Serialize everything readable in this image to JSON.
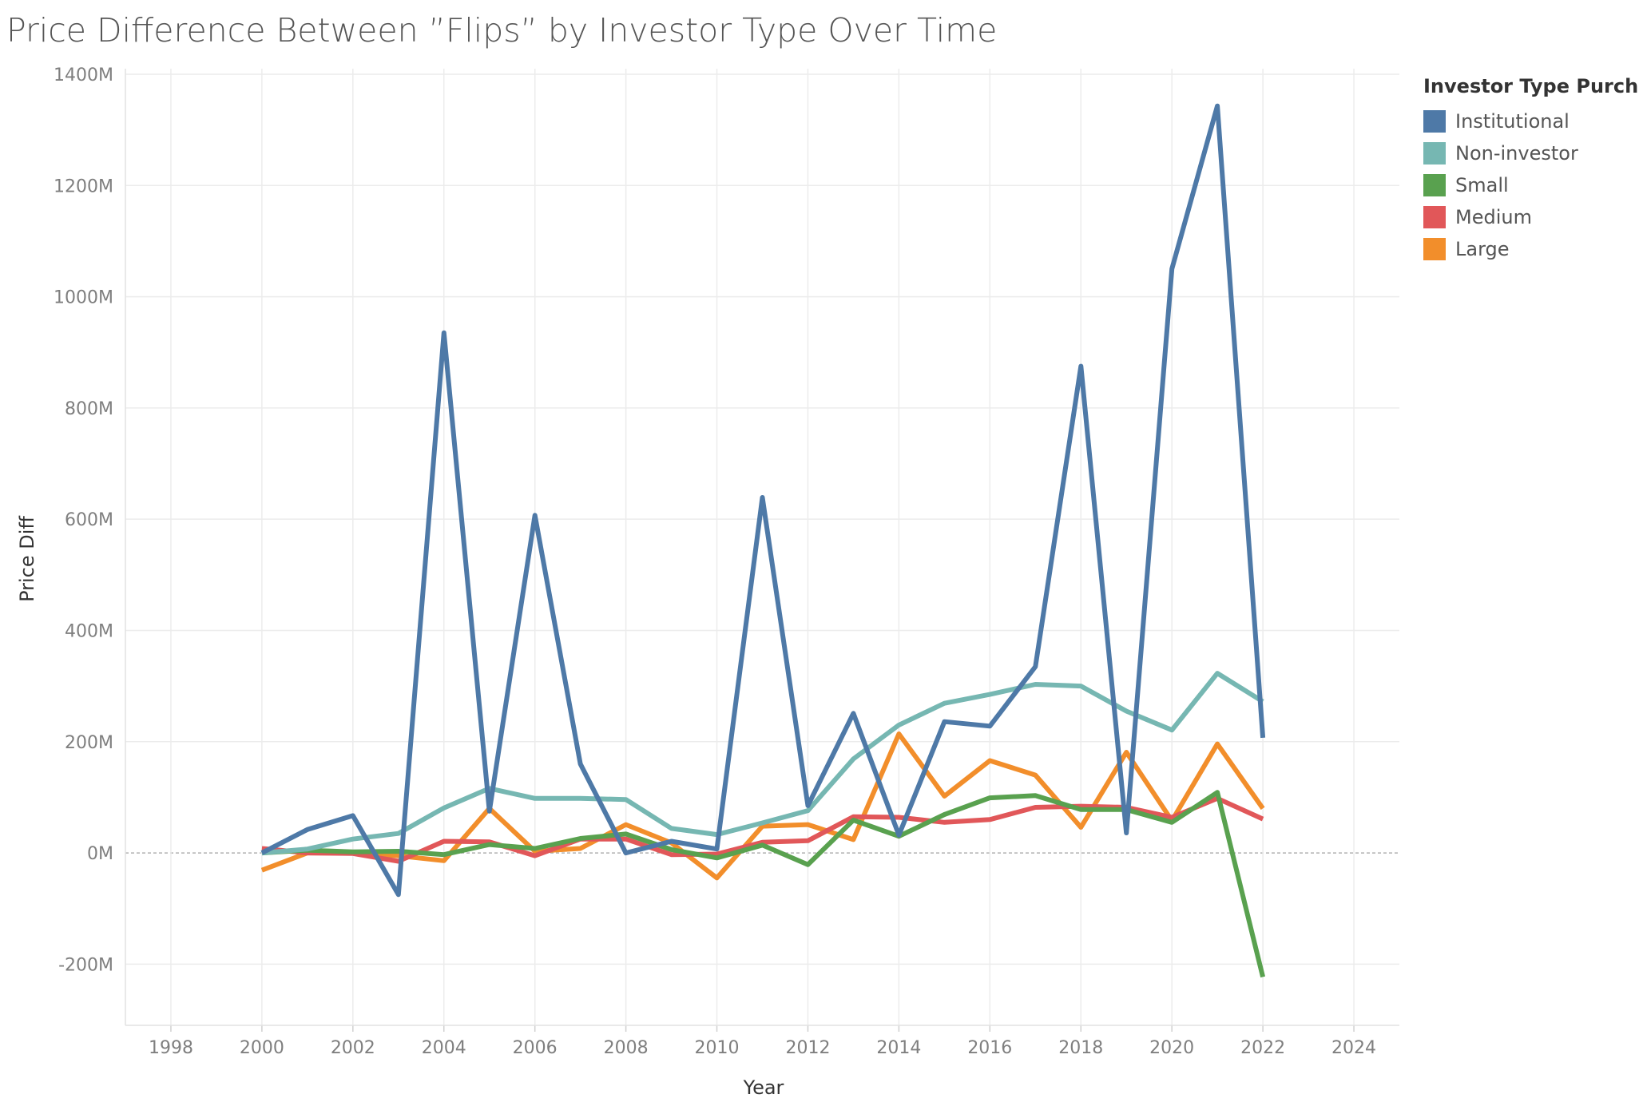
{
  "title": "Price Difference Between ”Flips” by Investor Type  Over Time",
  "legend": {
    "title": "Investor Type Purchase"
  },
  "chart_data": {
    "type": "line",
    "title": "Price Difference Between ”Flips” by Investor Type  Over Time",
    "xlabel": "Year",
    "ylabel": "Price Diff",
    "x": [
      2000,
      2001,
      2002,
      2003,
      2004,
      2005,
      2006,
      2007,
      2008,
      2009,
      2010,
      2011,
      2012,
      2013,
      2014,
      2015,
      2016,
      2017,
      2018,
      2019,
      2020,
      2021,
      2022
    ],
    "xlim": [
      1997,
      2025
    ],
    "ylim": [
      -310,
      1410
    ],
    "x_ticks": [
      "1998",
      "2000",
      "2002",
      "2004",
      "2006",
      "2008",
      "2010",
      "2012",
      "2014",
      "2016",
      "2018",
      "2020",
      "2022",
      "2024"
    ],
    "y_ticks": [
      "1400M",
      "1200M",
      "1000M",
      "800M",
      "600M",
      "400M",
      "200M",
      "0M",
      "-200M"
    ],
    "y_tick_values": [
      1400,
      1200,
      1000,
      800,
      600,
      400,
      200,
      0,
      -200
    ],
    "y_unit": "M",
    "grid": true,
    "zero_line": "dashed",
    "legend_position": "right",
    "series": [
      {
        "name": "Institutional",
        "color": "#4e79a7",
        "values": [
          0,
          42,
          67,
          -75,
          935,
          75,
          607,
          160,
          0,
          21,
          7,
          639,
          85,
          251,
          32,
          236,
          228,
          335,
          875,
          36,
          1050,
          1343,
          207
        ]
      },
      {
        "name": "Non-investor",
        "color": "#76b7b2",
        "values": [
          0,
          7,
          25,
          35,
          81,
          116,
          98,
          98,
          96,
          44,
          33,
          54,
          76,
          169,
          230,
          269,
          285,
          303,
          300,
          255,
          221,
          323,
          272
        ]
      },
      {
        "name": "Small",
        "color": "#59a14f",
        "values": [
          0,
          5,
          2,
          3,
          -3,
          15,
          8,
          26,
          34,
          6,
          -9,
          14,
          -21,
          59,
          30,
          69,
          99,
          103,
          78,
          78,
          55,
          109,
          -223
        ]
      },
      {
        "name": "Medium",
        "color": "#e15759",
        "values": [
          8,
          0,
          -1,
          -15,
          21,
          20,
          -5,
          25,
          25,
          -3,
          -2,
          19,
          22,
          65,
          64,
          55,
          60,
          82,
          84,
          82,
          64,
          98,
          61
        ]
      },
      {
        "name": "Large",
        "color": "#f28e2b",
        "values": [
          -31,
          0,
          0,
          -5,
          -14,
          80,
          3,
          8,
          51,
          18,
          -45,
          48,
          51,
          24,
          214,
          102,
          166,
          140,
          46,
          181,
          58,
          196,
          80
        ]
      }
    ]
  }
}
